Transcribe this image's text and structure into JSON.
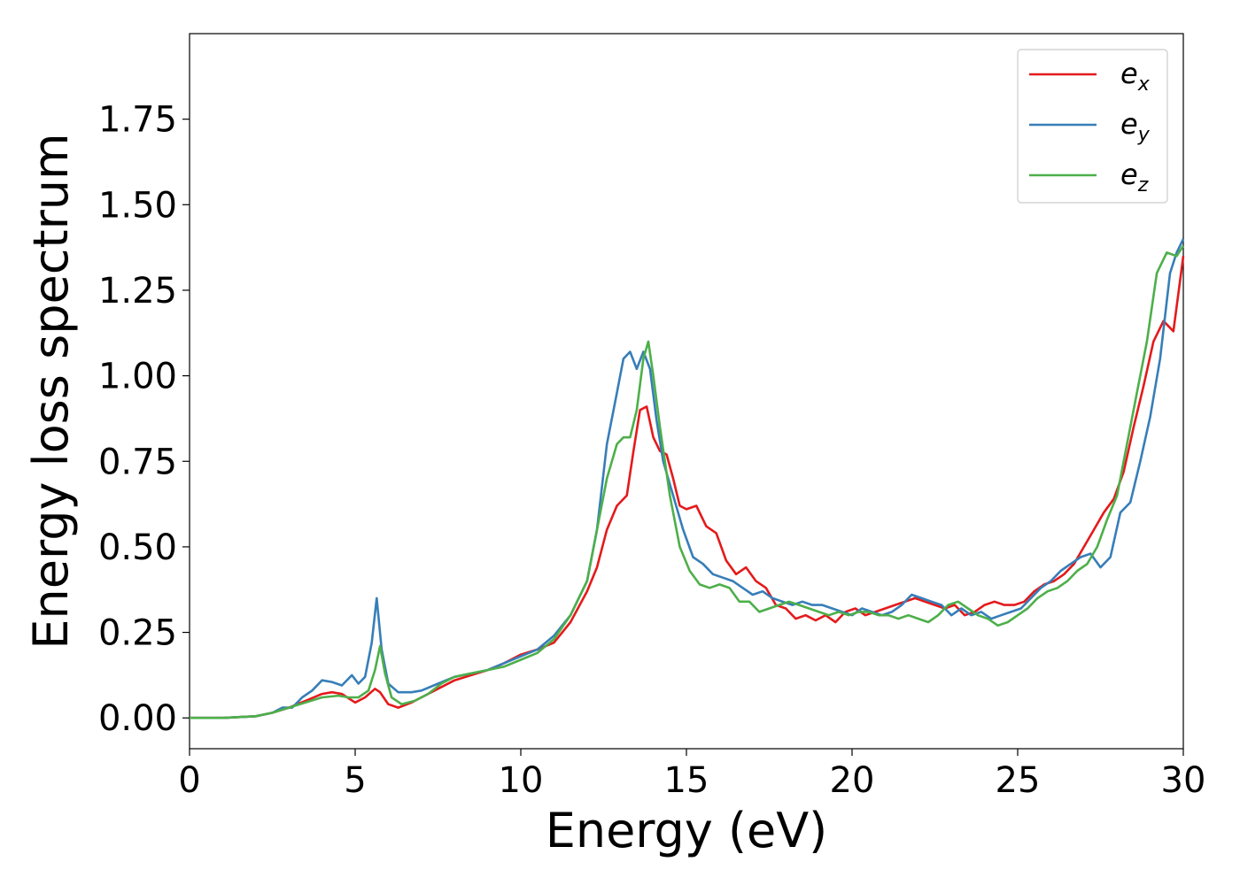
{
  "chart_data": {
    "type": "line",
    "xlabel": "Energy (eV)",
    "ylabel": "Energy loss spectrum",
    "xlim": [
      0,
      30
    ],
    "ylim": [
      -0.09,
      2.0
    ],
    "xticks": [
      0,
      5,
      10,
      15,
      20,
      25,
      30
    ],
    "xtick_labels": [
      "0",
      "5",
      "10",
      "15",
      "20",
      "25",
      "30"
    ],
    "yticks": [
      0.0,
      0.25,
      0.5,
      0.75,
      1.0,
      1.25,
      1.5,
      1.75
    ],
    "ytick_labels": [
      "0.00",
      "0.25",
      "0.50",
      "0.75",
      "1.00",
      "1.25",
      "1.50",
      "1.75"
    ],
    "grid": false,
    "legend_position": "top-right",
    "series": [
      {
        "name": "e",
        "subscript": "x",
        "color": "#e41a1c",
        "x": [
          0,
          1,
          2,
          2.5,
          3,
          3.5,
          4,
          4.3,
          4.6,
          5.0,
          5.3,
          5.6,
          5.75,
          6.0,
          6.3,
          6.7,
          7,
          7.5,
          8,
          8.5,
          9,
          9.5,
          10,
          10.5,
          11,
          11.5,
          12,
          12.3,
          12.6,
          12.9,
          13.2,
          13.4,
          13.6,
          13.8,
          14.0,
          14.2,
          14.4,
          14.6,
          14.8,
          15.0,
          15.3,
          15.6,
          15.9,
          16.2,
          16.5,
          16.8,
          17.1,
          17.4,
          17.7,
          18.0,
          18.3,
          18.6,
          18.9,
          19.2,
          19.5,
          19.8,
          20.1,
          20.4,
          20.7,
          21.0,
          21.3,
          21.6,
          21.9,
          22.2,
          22.5,
          22.8,
          23.1,
          23.4,
          23.7,
          24.0,
          24.3,
          24.6,
          24.9,
          25.2,
          25.5,
          25.8,
          26.1,
          26.4,
          26.7,
          27.0,
          27.3,
          27.6,
          27.9,
          28.2,
          28.5,
          28.8,
          29.1,
          29.4,
          29.7,
          30.0
        ],
        "y": [
          0.0,
          0.0,
          0.005,
          0.015,
          0.03,
          0.05,
          0.07,
          0.075,
          0.07,
          0.045,
          0.06,
          0.085,
          0.075,
          0.04,
          0.03,
          0.045,
          0.06,
          0.085,
          0.11,
          0.125,
          0.14,
          0.16,
          0.185,
          0.2,
          0.22,
          0.28,
          0.37,
          0.44,
          0.55,
          0.62,
          0.65,
          0.78,
          0.9,
          0.91,
          0.82,
          0.78,
          0.77,
          0.7,
          0.62,
          0.61,
          0.62,
          0.56,
          0.54,
          0.46,
          0.42,
          0.44,
          0.4,
          0.38,
          0.33,
          0.32,
          0.29,
          0.3,
          0.285,
          0.3,
          0.28,
          0.31,
          0.32,
          0.3,
          0.31,
          0.32,
          0.33,
          0.34,
          0.35,
          0.34,
          0.33,
          0.32,
          0.33,
          0.3,
          0.31,
          0.33,
          0.34,
          0.33,
          0.33,
          0.34,
          0.37,
          0.39,
          0.4,
          0.42,
          0.45,
          0.5,
          0.55,
          0.6,
          0.64,
          0.72,
          0.85,
          0.97,
          1.1,
          1.16,
          1.13,
          1.35
        ]
      },
      {
        "name": "e",
        "subscript": "y",
        "color": "#377eb8",
        "x": [
          0,
          1,
          2,
          2.5,
          2.8,
          3.1,
          3.4,
          3.7,
          4.0,
          4.3,
          4.6,
          4.9,
          5.1,
          5.3,
          5.5,
          5.65,
          5.8,
          6.0,
          6.3,
          6.7,
          7,
          7.5,
          8,
          8.5,
          9,
          9.5,
          10,
          10.5,
          11,
          11.5,
          12,
          12.3,
          12.6,
          12.9,
          13.1,
          13.3,
          13.5,
          13.7,
          13.9,
          14.1,
          14.3,
          14.6,
          14.9,
          15.2,
          15.5,
          15.8,
          16.1,
          16.4,
          16.7,
          17.0,
          17.3,
          17.6,
          17.9,
          18.2,
          18.5,
          18.8,
          19.1,
          19.4,
          19.7,
          20.0,
          20.3,
          20.6,
          20.9,
          21.2,
          21.5,
          21.8,
          22.1,
          22.4,
          22.7,
          23.0,
          23.3,
          23.6,
          23.9,
          24.2,
          24.5,
          24.8,
          25.1,
          25.4,
          25.7,
          26.0,
          26.3,
          26.6,
          26.9,
          27.2,
          27.5,
          27.8,
          28.1,
          28.4,
          28.7,
          29.0,
          29.3,
          29.6,
          29.8,
          30.0
        ],
        "y": [
          0.0,
          0.0,
          0.005,
          0.015,
          0.03,
          0.03,
          0.06,
          0.08,
          0.11,
          0.105,
          0.095,
          0.125,
          0.1,
          0.12,
          0.22,
          0.35,
          0.2,
          0.1,
          0.075,
          0.075,
          0.08,
          0.1,
          0.12,
          0.13,
          0.14,
          0.16,
          0.18,
          0.2,
          0.24,
          0.3,
          0.4,
          0.55,
          0.8,
          0.95,
          1.05,
          1.07,
          1.02,
          1.07,
          1.02,
          0.87,
          0.75,
          0.65,
          0.55,
          0.47,
          0.45,
          0.42,
          0.41,
          0.4,
          0.38,
          0.36,
          0.37,
          0.35,
          0.34,
          0.33,
          0.34,
          0.33,
          0.33,
          0.32,
          0.31,
          0.3,
          0.32,
          0.31,
          0.3,
          0.31,
          0.33,
          0.36,
          0.35,
          0.34,
          0.33,
          0.3,
          0.32,
          0.3,
          0.31,
          0.29,
          0.3,
          0.31,
          0.32,
          0.35,
          0.38,
          0.4,
          0.43,
          0.45,
          0.47,
          0.48,
          0.44,
          0.47,
          0.6,
          0.63,
          0.75,
          0.88,
          1.05,
          1.3,
          1.36,
          1.4
        ]
      },
      {
        "name": "e",
        "subscript": "z",
        "color": "#4daf4a",
        "x": [
          0,
          1,
          2,
          2.5,
          3,
          3.5,
          4,
          4.5,
          4.8,
          5.1,
          5.4,
          5.6,
          5.75,
          5.9,
          6.1,
          6.4,
          6.8,
          7.2,
          7.6,
          8,
          8.5,
          9,
          9.5,
          10,
          10.5,
          11,
          11.5,
          12,
          12.3,
          12.6,
          12.9,
          13.1,
          13.3,
          13.5,
          13.7,
          13.85,
          14.0,
          14.2,
          14.5,
          14.8,
          15.1,
          15.4,
          15.7,
          16.0,
          16.3,
          16.6,
          16.9,
          17.2,
          17.5,
          17.8,
          18.1,
          18.4,
          18.7,
          19.0,
          19.3,
          19.6,
          19.9,
          20.2,
          20.5,
          20.8,
          21.1,
          21.4,
          21.7,
          22.0,
          22.3,
          22.6,
          22.9,
          23.2,
          23.5,
          23.8,
          24.1,
          24.4,
          24.7,
          25.0,
          25.3,
          25.6,
          25.9,
          26.2,
          26.5,
          26.8,
          27.1,
          27.4,
          27.7,
          28.0,
          28.3,
          28.6,
          28.9,
          29.2,
          29.5,
          29.8,
          30.0
        ],
        "y": [
          0.0,
          0.0,
          0.005,
          0.015,
          0.03,
          0.045,
          0.06,
          0.065,
          0.06,
          0.06,
          0.08,
          0.14,
          0.21,
          0.13,
          0.06,
          0.04,
          0.05,
          0.07,
          0.1,
          0.12,
          0.13,
          0.14,
          0.15,
          0.17,
          0.19,
          0.23,
          0.3,
          0.4,
          0.55,
          0.7,
          0.8,
          0.82,
          0.82,
          0.9,
          1.05,
          1.1,
          1.0,
          0.85,
          0.65,
          0.5,
          0.43,
          0.39,
          0.38,
          0.39,
          0.38,
          0.34,
          0.34,
          0.31,
          0.32,
          0.33,
          0.34,
          0.33,
          0.32,
          0.31,
          0.3,
          0.31,
          0.3,
          0.31,
          0.31,
          0.3,
          0.3,
          0.29,
          0.3,
          0.29,
          0.28,
          0.3,
          0.33,
          0.34,
          0.32,
          0.3,
          0.29,
          0.27,
          0.28,
          0.3,
          0.32,
          0.35,
          0.37,
          0.38,
          0.4,
          0.43,
          0.45,
          0.5,
          0.58,
          0.65,
          0.8,
          0.95,
          1.1,
          1.3,
          1.36,
          1.35,
          1.38
        ]
      }
    ]
  }
}
